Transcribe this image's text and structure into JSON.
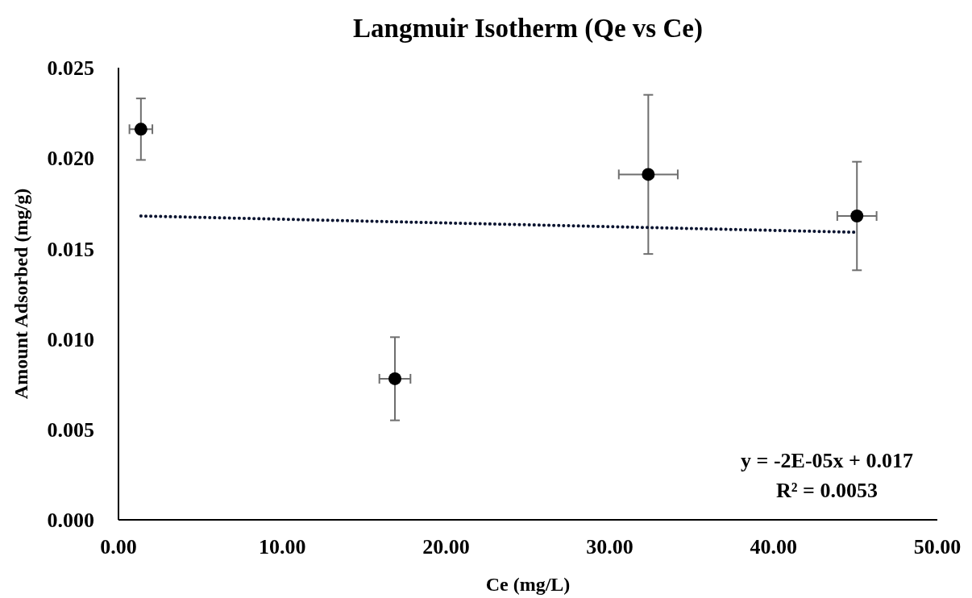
{
  "chart_data": {
    "type": "scatter",
    "title": "Langmuir Isotherm (Qe vs Ce)",
    "xlabel": "Ce (mg/L)",
    "ylabel": "Amount Adsorbed (mg/g)",
    "series": [
      {
        "color": "#000000",
        "x": [
          1.37,
          16.88,
          32.35,
          45.09
        ],
        "values": [
          0.0216,
          0.0078,
          0.0191,
          0.0168
        ],
        "errors": [
          0.0017,
          0.0023,
          0.0044,
          0.003
        ],
        "xerrors": [
          0.7,
          0.95,
          1.8,
          1.2
        ],
        "marker": "circle"
      },
      {
        "type": "line",
        "color": "#0a1430",
        "x": [
          1.37,
          45.09
        ],
        "values": [
          0.0168,
          0.0159
        ],
        "line_style": "dotted"
      }
    ],
    "xlim": [
      0,
      50
    ],
    "ylim": [
      0,
      0.025
    ],
    "xticks": [
      {
        "value": 0,
        "label": "0.00"
      },
      {
        "value": 10,
        "label": "10.00"
      },
      {
        "value": 20,
        "label": "20.00"
      },
      {
        "value": 30,
        "label": "30.00"
      },
      {
        "value": 40,
        "label": "40.00"
      },
      {
        "value": 50,
        "label": "50.00"
      }
    ],
    "yticks": [
      {
        "value": 0,
        "label": "0.000"
      },
      {
        "value": 0.005,
        "label": "0.005"
      },
      {
        "value": 0.01,
        "label": "0.010"
      },
      {
        "value": 0.015,
        "label": "0.015"
      },
      {
        "value": 0.02,
        "label": "0.020"
      },
      {
        "value": 0.025,
        "label": "0.025"
      }
    ],
    "annotations": [
      "y = -2E-05x + 0.017",
      "R² = 0.0053"
    ],
    "grid": false
  }
}
